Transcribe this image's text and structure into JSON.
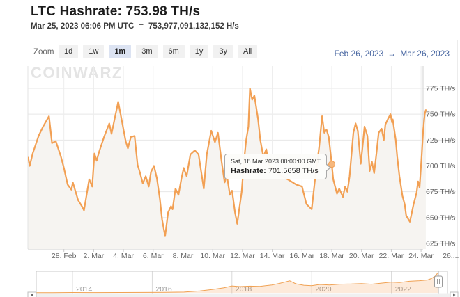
{
  "header": {
    "title": "LTC Hashrate: 753.98 TH/s",
    "timestamp": "Mar 25, 2023 06:06 PM UTC",
    "separator": "−",
    "hashrate_full": "753,977,091,132,152 H/s"
  },
  "toolbar": {
    "zoom_label": "Zoom",
    "buttons": [
      {
        "label": "1d",
        "active": false
      },
      {
        "label": "1w",
        "active": false
      },
      {
        "label": "1m",
        "active": true
      },
      {
        "label": "3m",
        "active": false
      },
      {
        "label": "6m",
        "active": false
      },
      {
        "label": "1y",
        "active": false
      },
      {
        "label": "3y",
        "active": false
      },
      {
        "label": "All",
        "active": false
      }
    ],
    "range_from": "Feb 26, 2023",
    "range_arrow": "→",
    "range_to": "Mar 26, 2023"
  },
  "watermark": "COINWARZ",
  "tooltip": {
    "date": "Sat, 18 Mar 2023 00:00:00 GMT",
    "label": "Hashrate:",
    "value": "701.5658 TH/s"
  },
  "colors": {
    "line": "#f2a054",
    "area": "#f6f4f1",
    "marker_fill": "#f6b87e",
    "grid": "#e7e7e7",
    "grid_vertical": "#ededed",
    "axis": "#cccccc",
    "axis_label": "#666666",
    "nav_line": "#f0a254",
    "nav_fill": "rgba(244,160,86,0.22)",
    "nav_label": "#999999",
    "nav_grid": "#d9d9d9",
    "nav_border": "#c9c9c9",
    "handle": "#9a9a9a",
    "scrollbar_track": "#f0f0f0",
    "scrollbar_border": "#bfbfbf",
    "active_button_bg": "#dce3f2",
    "range_text": "#44639f"
  },
  "chart_data": {
    "type": "area",
    "title": "LTC Hashrate",
    "unit": "TH/s",
    "x_unit": "days since 2023-02-26 00:00 UTC",
    "x_range_label": [
      "Feb 26, 2023",
      "Mar 26, 2023"
    ],
    "ylim": [
      620,
      780
    ],
    "grid": true,
    "y_ticks": [
      {
        "v": 775,
        "label": "775 TH/s"
      },
      {
        "v": 750,
        "label": "750 TH/s"
      },
      {
        "v": 725,
        "label": "725 TH/s"
      },
      {
        "v": 700,
        "label": "700 TH/s"
      },
      {
        "v": 675,
        "label": "675 TH/s"
      },
      {
        "v": 650,
        "label": "650 TH/s"
      },
      {
        "v": 625,
        "label": "625 TH/s"
      }
    ],
    "x_ticks": [
      {
        "t": 2,
        "label": "28. Feb"
      },
      {
        "t": 4,
        "label": "2. Mar"
      },
      {
        "t": 6,
        "label": "4. Mar"
      },
      {
        "t": 8,
        "label": "6. Mar"
      },
      {
        "t": 10,
        "label": "8. Mar"
      },
      {
        "t": 12,
        "label": "10. Mar"
      },
      {
        "t": 14,
        "label": "12. Mar"
      },
      {
        "t": 16,
        "label": "14. Mar"
      },
      {
        "t": 18,
        "label": "16. Mar"
      },
      {
        "t": 20,
        "label": "18. Mar"
      },
      {
        "t": 22,
        "label": "20. Mar"
      },
      {
        "t": 24,
        "label": "22. Mar"
      },
      {
        "t": 26,
        "label": "24. Mar"
      },
      {
        "t": 28,
        "label": "26...."
      }
    ],
    "series": [
      {
        "name": "Hashrate",
        "points": [
          [
            -0.4,
            708
          ],
          [
            -0.3,
            700
          ],
          [
            -0.1,
            712
          ],
          [
            0.3,
            729
          ],
          [
            0.6,
            738
          ],
          [
            1.0,
            748
          ],
          [
            1.2,
            722
          ],
          [
            1.45,
            724
          ],
          [
            1.8,
            709
          ],
          [
            2.0,
            698
          ],
          [
            2.25,
            682
          ],
          [
            2.5,
            677
          ],
          [
            2.6,
            684
          ],
          [
            2.95,
            667
          ],
          [
            3.25,
            660
          ],
          [
            3.35,
            657
          ],
          [
            3.7,
            687
          ],
          [
            3.9,
            680
          ],
          [
            4.05,
            712
          ],
          [
            4.2,
            705
          ],
          [
            4.35,
            713
          ],
          [
            4.7,
            728
          ],
          [
            5.05,
            741
          ],
          [
            5.2,
            731
          ],
          [
            5.65,
            762
          ],
          [
            5.9,
            743
          ],
          [
            6.15,
            724
          ],
          [
            6.3,
            717
          ],
          [
            6.5,
            728
          ],
          [
            6.75,
            729
          ],
          [
            6.95,
            701
          ],
          [
            7.1,
            694
          ],
          [
            7.3,
            683
          ],
          [
            7.5,
            690
          ],
          [
            7.7,
            680
          ],
          [
            7.85,
            694
          ],
          [
            8.05,
            700
          ],
          [
            8.25,
            688
          ],
          [
            8.45,
            668
          ],
          [
            8.6,
            648
          ],
          [
            8.8,
            632
          ],
          [
            9.0,
            655
          ],
          [
            9.2,
            661
          ],
          [
            9.3,
            658
          ],
          [
            9.5,
            678
          ],
          [
            9.7,
            672
          ],
          [
            9.9,
            688
          ],
          [
            10.05,
            698
          ],
          [
            10.25,
            690
          ],
          [
            10.5,
            711
          ],
          [
            10.8,
            715
          ],
          [
            11.05,
            711
          ],
          [
            11.4,
            678
          ],
          [
            11.6,
            711
          ],
          [
            11.9,
            734
          ],
          [
            12.15,
            723
          ],
          [
            12.35,
            732
          ],
          [
            12.6,
            704
          ],
          [
            12.8,
            684
          ],
          [
            12.95,
            691
          ],
          [
            13.15,
            672
          ],
          [
            13.3,
            676
          ],
          [
            13.5,
            655
          ],
          [
            13.65,
            644
          ],
          [
            13.75,
            655
          ],
          [
            13.95,
            675
          ],
          [
            14.1,
            704
          ],
          [
            14.25,
            725
          ],
          [
            14.4,
            738
          ],
          [
            14.5,
            775
          ],
          [
            14.65,
            764
          ],
          [
            14.8,
            768
          ],
          [
            15.05,
            745
          ],
          [
            15.2,
            725
          ],
          [
            15.4,
            709
          ],
          [
            15.6,
            716
          ],
          [
            15.75,
            702
          ],
          [
            16.2,
            696
          ],
          [
            16.65,
            690
          ],
          [
            17.15,
            686
          ],
          [
            17.6,
            682
          ],
          [
            18.0,
            680
          ],
          [
            18.3,
            663
          ],
          [
            18.65,
            658
          ],
          [
            18.9,
            690
          ],
          [
            19.15,
            718
          ],
          [
            19.35,
            748
          ],
          [
            19.5,
            732
          ],
          [
            19.65,
            735
          ],
          [
            19.8,
            728
          ],
          [
            20.0,
            701.5658
          ],
          [
            20.1,
            687
          ],
          [
            20.35,
            673
          ],
          [
            20.5,
            678
          ],
          [
            20.75,
            670
          ],
          [
            20.9,
            680
          ],
          [
            21.05,
            675
          ],
          [
            21.2,
            690
          ],
          [
            21.45,
            732
          ],
          [
            21.6,
            741
          ],
          [
            21.75,
            734
          ],
          [
            21.95,
            702
          ],
          [
            22.05,
            716
          ],
          [
            22.2,
            738
          ],
          [
            22.4,
            729
          ],
          [
            22.55,
            695
          ],
          [
            22.7,
            704
          ],
          [
            22.85,
            693
          ],
          [
            23.0,
            712
          ],
          [
            23.15,
            732
          ],
          [
            23.35,
            736
          ],
          [
            23.5,
            725
          ],
          [
            23.6,
            740
          ],
          [
            23.8,
            746
          ],
          [
            23.95,
            750
          ],
          [
            24.05,
            742
          ],
          [
            24.1,
            745
          ],
          [
            24.3,
            725
          ],
          [
            24.4,
            709
          ],
          [
            24.55,
            690
          ],
          [
            24.75,
            671
          ],
          [
            24.9,
            663
          ],
          [
            25.0,
            652
          ],
          [
            25.25,
            646
          ],
          [
            25.5,
            663
          ],
          [
            25.7,
            674
          ],
          [
            25.8,
            685
          ],
          [
            25.9,
            679
          ],
          [
            26.05,
            712
          ],
          [
            26.15,
            736
          ],
          [
            26.25,
            750
          ],
          [
            26.32,
            754
          ]
        ]
      }
    ],
    "marker": {
      "t": 20,
      "value": 701.5658
    },
    "navigator": {
      "x_ticks": [
        {
          "year": 2014,
          "label": "2014"
        },
        {
          "year": 2016,
          "label": "2016"
        },
        {
          "year": 2018,
          "label": "2018"
        },
        {
          "year": 2020,
          "label": "2020"
        },
        {
          "year": 2022,
          "label": "2022"
        }
      ],
      "ylim": [
        0,
        760
      ],
      "points": [
        [
          2013.1,
          6
        ],
        [
          2013.5,
          8
        ],
        [
          2014,
          12
        ],
        [
          2014.6,
          11
        ],
        [
          2015.2,
          13
        ],
        [
          2015.8,
          14
        ],
        [
          2016.3,
          18
        ],
        [
          2016.8,
          28
        ],
        [
          2017.2,
          70
        ],
        [
          2017.5,
          120
        ],
        [
          2017.8,
          185
        ],
        [
          2018.0,
          250
        ],
        [
          2018.2,
          228
        ],
        [
          2018.45,
          242
        ],
        [
          2018.7,
          235
        ],
        [
          2019.0,
          285
        ],
        [
          2019.2,
          345
        ],
        [
          2019.45,
          435
        ],
        [
          2019.6,
          330
        ],
        [
          2019.8,
          275
        ],
        [
          2020.0,
          262
        ],
        [
          2020.2,
          305
        ],
        [
          2020.45,
          285
        ],
        [
          2020.7,
          315
        ],
        [
          2021.0,
          322
        ],
        [
          2021.25,
          338
        ],
        [
          2021.5,
          315
        ],
        [
          2021.75,
          352
        ],
        [
          2022.0,
          390
        ],
        [
          2022.2,
          375
        ],
        [
          2022.45,
          420
        ],
        [
          2022.7,
          440
        ],
        [
          2022.9,
          465
        ],
        [
          2023.0,
          520
        ],
        [
          2023.1,
          610
        ],
        [
          2023.18,
          758
        ]
      ]
    }
  }
}
